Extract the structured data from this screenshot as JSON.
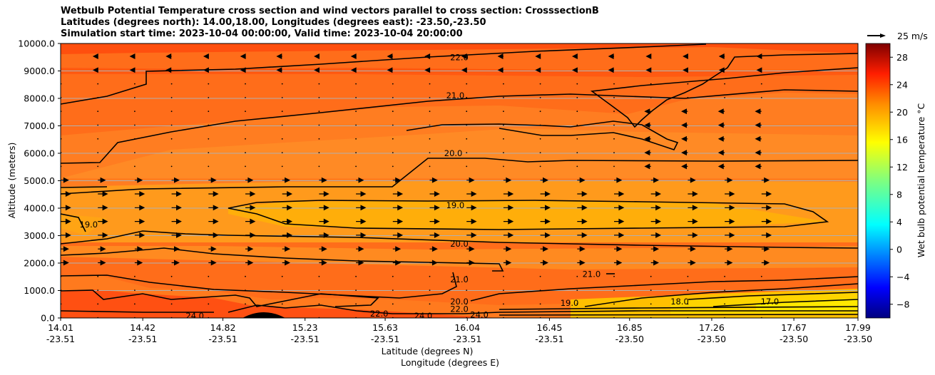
{
  "chart_data": {
    "type": "contourf",
    "title_lines": [
      "Wetbulb Potential Temperature cross section and wind vectors parallel to cross section: CrosssectionB",
      "Latitudes (degrees north): 14.00,18.00, Longitudes (degrees east): -23.50,-23.50",
      "Simulation start time: 2023-10-04 00:00:00, Valid time: 2023-10-04 20:00:00"
    ],
    "ylabel": "Altitude (meters)",
    "xlabel_line1": "Latitude (degrees N)",
    "xlabel_line2": "Longitude (degrees E)",
    "ylim": [
      0,
      10000
    ],
    "yticks": [
      "0.0",
      "1000.0",
      "2000.0",
      "3000.0",
      "4000.0",
      "5000.0",
      "6000.0",
      "7000.0",
      "8000.0",
      "9000.0",
      "10000.0"
    ],
    "xlim": [
      14.01,
      17.99
    ],
    "xticks": [
      {
        "lat": "14.01",
        "lon": "-23.51"
      },
      {
        "lat": "14.42",
        "lon": "-23.51"
      },
      {
        "lat": "14.82",
        "lon": "-23.51"
      },
      {
        "lat": "15.23",
        "lon": "-23.51"
      },
      {
        "lat": "15.63",
        "lon": "-23.51"
      },
      {
        "lat": "16.04",
        "lon": "-23.51"
      },
      {
        "lat": "16.45",
        "lon": "-23.51"
      },
      {
        "lat": "16.85",
        "lon": "-23.50"
      },
      {
        "lat": "17.26",
        "lon": "-23.50"
      },
      {
        "lat": "17.67",
        "lon": "-23.50"
      },
      {
        "lat": "17.99",
        "lon": "-23.50"
      }
    ],
    "grid": "horizontal",
    "colorbar": {
      "label": "Wet bulb potential temperature °C",
      "min": -10,
      "max": 30,
      "ticks": [
        "−8",
        "−4",
        "0",
        "4",
        "8",
        "12",
        "16",
        "20",
        "24",
        "28"
      ]
    },
    "quiver_key": {
      "label": "25 m/s"
    },
    "contour_labels": [
      {
        "text": "22.0",
        "x": 16.0,
        "y": 9500
      },
      {
        "text": "21.0",
        "x": 15.98,
        "y": 8100
      },
      {
        "text": "20.0",
        "x": 15.97,
        "y": 6000
      },
      {
        "text": "19.0",
        "x": 15.98,
        "y": 4100
      },
      {
        "text": "20.0",
        "x": 16.0,
        "y": 2700
      },
      {
        "text": "21.0",
        "x": 16.0,
        "y": 1400
      },
      {
        "text": "19.0",
        "x": 14.15,
        "y": 3400
      },
      {
        "text": "21.0",
        "x": 16.66,
        "y": 1600
      },
      {
        "text": "19.0",
        "x": 16.55,
        "y": 550
      },
      {
        "text": "18.0",
        "x": 17.1,
        "y": 600
      },
      {
        "text": "17.0",
        "x": 17.55,
        "y": 600
      },
      {
        "text": "24.0",
        "x": 14.68,
        "y": 80
      },
      {
        "text": "22.0",
        "x": 15.6,
        "y": 150
      },
      {
        "text": "24.0",
        "x": 15.82,
        "y": 80
      },
      {
        "text": "20.0",
        "x": 16.0,
        "y": 600
      },
      {
        "text": "22.0",
        "x": 16.0,
        "y": 320
      },
      {
        "text": "24.0",
        "x": 16.1,
        "y": 120
      }
    ]
  }
}
